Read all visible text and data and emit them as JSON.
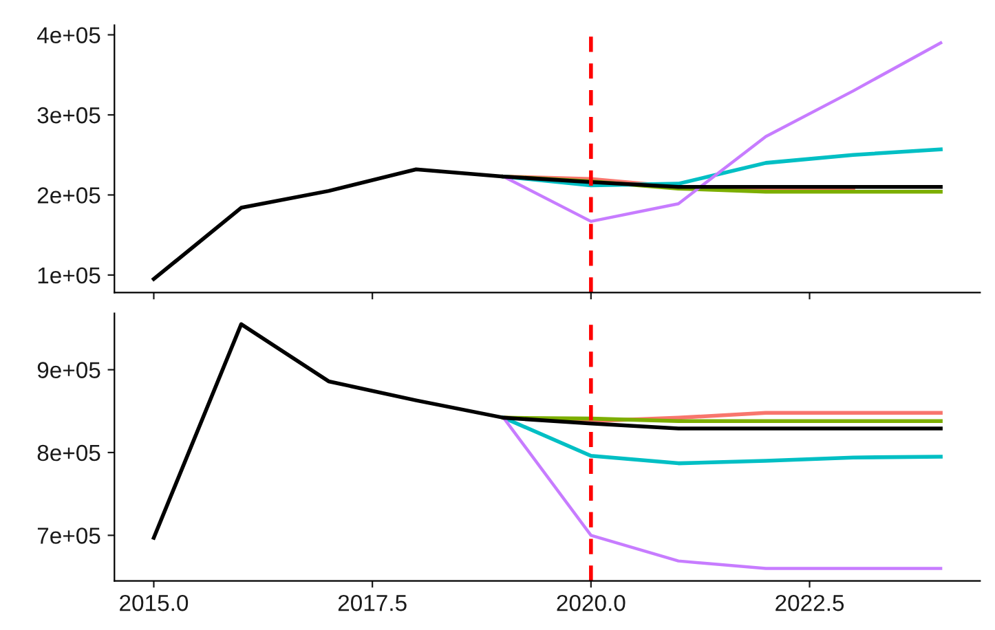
{
  "chart_data": [
    {
      "type": "line",
      "xlim": [
        2014.55,
        2024.45
      ],
      "xticks": [
        {
          "value": 2015,
          "label": null
        },
        {
          "value": 2017.5,
          "label": null
        },
        {
          "value": 2020,
          "label": null
        },
        {
          "value": 2022.5,
          "label": null
        }
      ],
      "ylim": [
        78000,
        412000
      ],
      "yticks": [
        {
          "value": 100000,
          "label": "1e+05"
        },
        {
          "value": 200000,
          "label": "2e+05"
        },
        {
          "value": 300000,
          "label": "3e+05"
        },
        {
          "value": 400000,
          "label": "4e+05"
        }
      ],
      "tick_labels": "y",
      "grid": false,
      "legend": false,
      "ref_lines": [
        {
          "axis": "x",
          "value": 2020,
          "color": "#ff0000",
          "line_style": "dashed"
        }
      ],
      "series": [
        {
          "color": "#F8766D",
          "x": [
            2019,
            2020,
            2021,
            2022,
            2023
          ],
          "values": [
            223000,
            220000,
            210000,
            207000,
            207000
          ]
        },
        {
          "color": "#7CAE00",
          "x": [
            2019,
            2020,
            2021,
            2022,
            2023,
            2024
          ],
          "values": [
            223000,
            217000,
            208000,
            204000,
            204000,
            204000
          ]
        },
        {
          "color": "#00BFC4",
          "x": [
            2019,
            2020,
            2021,
            2022,
            2023,
            2024
          ],
          "values": [
            223000,
            212000,
            214000,
            240000,
            250000,
            257000
          ]
        },
        {
          "color": "#C77CFF",
          "x": [
            2019,
            2020,
            2021,
            2022,
            2023,
            2024
          ],
          "values": [
            223000,
            167000,
            189000,
            273000,
            330000,
            390000
          ]
        },
        {
          "color": "#000000",
          "x": [
            2015,
            2016,
            2017,
            2018,
            2019,
            2020,
            2021,
            2022,
            2023,
            2024
          ],
          "values": [
            95000,
            184000,
            205000,
            232000,
            223000,
            216000,
            210000,
            210000,
            210000,
            210000
          ]
        }
      ]
    },
    {
      "type": "line",
      "xlim": [
        2014.55,
        2024.45
      ],
      "xticks": [
        {
          "value": 2015,
          "label": "2015.0"
        },
        {
          "value": 2017.5,
          "label": "2017.5"
        },
        {
          "value": 2020,
          "label": "2020.0"
        },
        {
          "value": 2022.5,
          "label": "2022.5"
        }
      ],
      "ylim": [
        645000,
        968000
      ],
      "yticks": [
        {
          "value": 700000,
          "label": "7e+05"
        },
        {
          "value": 800000,
          "label": "8e+05"
        },
        {
          "value": 900000,
          "label": "9e+05"
        }
      ],
      "grid": false,
      "legend": false,
      "ref_lines": [
        {
          "axis": "x",
          "value": 2020,
          "color": "#ff0000",
          "line_style": "dashed"
        }
      ],
      "series": [
        {
          "color": "#F8766D",
          "x": [
            2019,
            2020,
            2021,
            2022,
            2023,
            2024
          ],
          "values": [
            842000,
            838000,
            842000,
            848000,
            848000,
            848000
          ]
        },
        {
          "color": "#7CAE00",
          "x": [
            2019,
            2020,
            2021,
            2022,
            2023,
            2024
          ],
          "values": [
            842000,
            841000,
            838000,
            838000,
            838000,
            838000
          ]
        },
        {
          "color": "#00BFC4",
          "x": [
            2019,
            2020,
            2021,
            2022,
            2023,
            2024
          ],
          "values": [
            842000,
            796000,
            787000,
            790000,
            794000,
            795000
          ]
        },
        {
          "color": "#C77CFF",
          "x": [
            2019,
            2020,
            2021,
            2022,
            2023,
            2024
          ],
          "values": [
            842000,
            700000,
            669000,
            660000,
            660000,
            660000
          ]
        },
        {
          "color": "#000000",
          "x": [
            2015,
            2016,
            2017,
            2018,
            2019,
            2020,
            2021,
            2022,
            2023,
            2024
          ],
          "values": [
            697000,
            955000,
            886000,
            863000,
            842000,
            835000,
            829000,
            829000,
            829000,
            829000
          ]
        }
      ]
    }
  ]
}
